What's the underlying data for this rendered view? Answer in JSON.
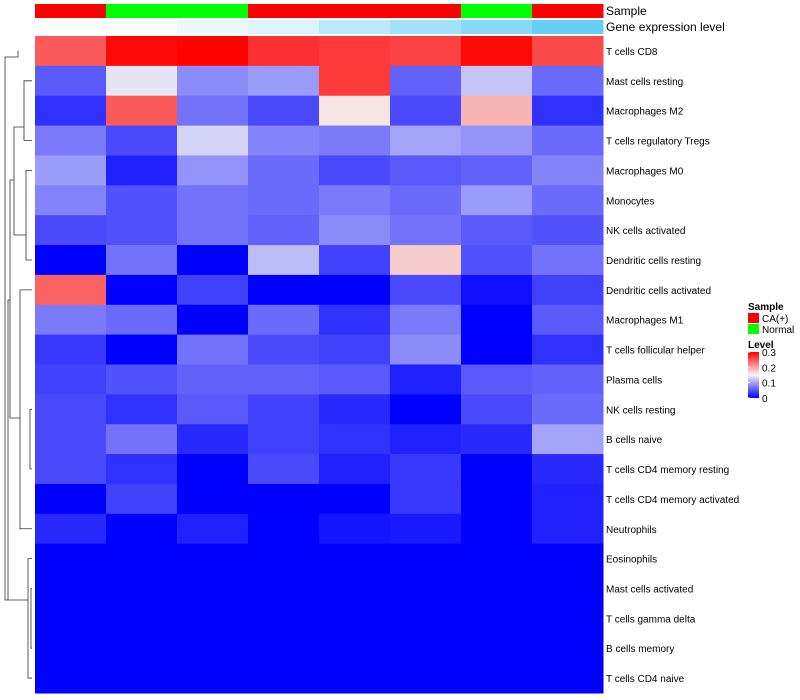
{
  "chart_data": {
    "type": "heatmap",
    "annotation_labels": [
      "Sample",
      "Gene expression level"
    ],
    "columns": [
      {
        "sample": "CA(+)",
        "expression": 0.0
      },
      {
        "sample": "Normal",
        "expression": 0.05
      },
      {
        "sample": "Normal",
        "expression": 0.12
      },
      {
        "sample": "CA(+)",
        "expression": 0.2
      },
      {
        "sample": "CA(+)",
        "expression": 0.4
      },
      {
        "sample": "CA(+)",
        "expression": 0.55
      },
      {
        "sample": "Normal",
        "expression": 0.7
      },
      {
        "sample": "CA(+)",
        "expression": 0.9
      }
    ],
    "rows": [
      {
        "label": "T cells CD8",
        "values": [
          0.245,
          0.295,
          0.298,
          0.27,
          0.265,
          0.26,
          0.295,
          0.255
        ]
      },
      {
        "label": "Mast cells resting",
        "values": [
          0.055,
          0.14,
          0.085,
          0.095,
          0.265,
          0.06,
          0.12,
          0.065
        ]
      },
      {
        "label": "Macrophages M2",
        "values": [
          0.03,
          0.245,
          0.07,
          0.045,
          0.16,
          0.045,
          0.19,
          0.03
        ]
      },
      {
        "label": "T cells regulatory  Tregs",
        "values": [
          0.075,
          0.045,
          0.13,
          0.08,
          0.075,
          0.1,
          0.09,
          0.065
        ]
      },
      {
        "label": "Macrophages M0",
        "values": [
          0.095,
          0.02,
          0.09,
          0.065,
          0.045,
          0.055,
          0.06,
          0.08
        ]
      },
      {
        "label": "Monocytes",
        "values": [
          0.08,
          0.05,
          0.07,
          0.065,
          0.075,
          0.065,
          0.095,
          0.065
        ]
      },
      {
        "label": "NK cells activated",
        "values": [
          0.045,
          0.05,
          0.07,
          0.06,
          0.085,
          0.07,
          0.055,
          0.05
        ]
      },
      {
        "label": "Dendritic cells resting",
        "values": [
          0.0,
          0.07,
          0.0,
          0.115,
          0.04,
          0.175,
          0.05,
          0.07
        ]
      },
      {
        "label": "Dendritic cells activated",
        "values": [
          0.24,
          0.0,
          0.04,
          0.0,
          0.0,
          0.045,
          0.01,
          0.04
        ]
      },
      {
        "label": "Macrophages M1",
        "values": [
          0.075,
          0.065,
          0.0,
          0.065,
          0.03,
          0.075,
          0.0,
          0.055
        ]
      },
      {
        "label": "T cells follicular helper",
        "values": [
          0.035,
          0.0,
          0.07,
          0.045,
          0.04,
          0.085,
          0.0,
          0.03
        ]
      },
      {
        "label": "Plasma cells",
        "values": [
          0.04,
          0.05,
          0.06,
          0.06,
          0.055,
          0.02,
          0.055,
          0.06
        ]
      },
      {
        "label": "NK cells resting",
        "values": [
          0.045,
          0.03,
          0.055,
          0.04,
          0.025,
          0.0,
          0.045,
          0.065
        ]
      },
      {
        "label": "B cells naive",
        "values": [
          0.045,
          0.07,
          0.025,
          0.04,
          0.03,
          0.02,
          0.025,
          0.1
        ]
      },
      {
        "label": "T cells CD4 memory resting",
        "values": [
          0.045,
          0.03,
          0.0,
          0.045,
          0.02,
          0.035,
          0.0,
          0.025
        ]
      },
      {
        "label": "T cells CD4 memory activated",
        "values": [
          0.0,
          0.04,
          0.0,
          0.0,
          0.0,
          0.035,
          0.0,
          0.02
        ]
      },
      {
        "label": "Neutrophils",
        "values": [
          0.025,
          0.0,
          0.02,
          0.0,
          0.012,
          0.015,
          0.0,
          0.02
        ]
      },
      {
        "label": "Eosinophils",
        "values": [
          0.0,
          0.0,
          0.0,
          0.0,
          0.0,
          0.0,
          0.0,
          0.0
        ]
      },
      {
        "label": "Mast cells activated",
        "values": [
          0.0,
          0.0,
          0.0,
          0.0,
          0.0,
          0.0,
          0.0,
          0.0
        ]
      },
      {
        "label": "T cells gamma delta",
        "values": [
          0.0,
          0.0,
          0.0,
          0.0,
          0.0,
          0.0,
          0.0,
          0.0
        ]
      },
      {
        "label": "B cells memory",
        "values": [
          0.0,
          0.0,
          0.0,
          0.0,
          0.0,
          0.0,
          0.0,
          0.0
        ]
      },
      {
        "label": "T cells CD4 naive",
        "values": [
          0.0,
          0.0,
          0.0,
          0.0,
          0.0,
          0.0,
          0.0,
          0.0
        ]
      }
    ],
    "color_scale": {
      "min": 0,
      "mid": 0.15,
      "max": 0.3,
      "low": "#0000ff",
      "mid_color": "#f5f5f5",
      "high": "#ff0000"
    },
    "legend": {
      "sample_title": "Sample",
      "sample_items": [
        {
          "name": "CA(+)",
          "color": "#ff0000"
        },
        {
          "name": "Normal",
          "color": "#00ff00"
        }
      ],
      "level_title": "Level",
      "level_ticks": [
        {
          "label": "0.3",
          "value": 0.3
        },
        {
          "label": "0.2",
          "value": 0.2
        },
        {
          "label": "0.1",
          "value": 0.1
        },
        {
          "label": "0",
          "value": 0
        }
      ],
      "placement": "right"
    },
    "row_dendrogram": true
  }
}
